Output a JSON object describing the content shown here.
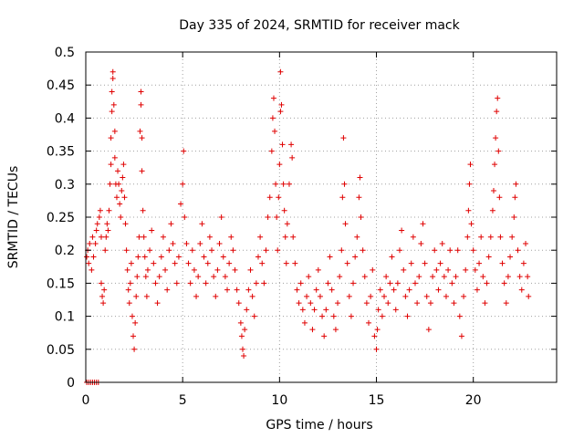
{
  "chart_data": {
    "type": "scatter",
    "title": "Day 335 of 2024, SRMTID for receiver mack",
    "xlabel": "GPS time / hours",
    "ylabel": "SRMTID / TECUs",
    "xlim": [
      0,
      24.3
    ],
    "ylim": [
      0,
      0.5
    ],
    "x_ticks": [
      0,
      5,
      10,
      15,
      20
    ],
    "x_tick_labels": [
      "0",
      "5",
      "10",
      "15",
      "20"
    ],
    "y_ticks": [
      0,
      0.05,
      0.1,
      0.15,
      0.2,
      0.25,
      0.3,
      0.35,
      0.4,
      0.45,
      0.5
    ],
    "y_tick_labels": [
      "0",
      "0.05",
      "0.1",
      "0.15",
      "0.2",
      "0.25",
      "0.3",
      "0.35",
      "0.4",
      "0.45",
      "0.5"
    ],
    "grid": true,
    "marker": "+",
    "colors": {
      "marker": "#e00000",
      "grid": "#a0a0a0",
      "frame": "#000000"
    },
    "series": [
      {
        "name": "SRMTID",
        "points": [
          [
            0.05,
            0.0
          ],
          [
            0.15,
            0.0
          ],
          [
            0.25,
            0.0
          ],
          [
            0.35,
            0.0
          ],
          [
            0.45,
            0.0
          ],
          [
            0.55,
            0.0
          ],
          [
            0.65,
            0.0
          ],
          [
            0.05,
            0.19
          ],
          [
            0.1,
            0.2
          ],
          [
            0.15,
            0.18
          ],
          [
            0.2,
            0.21
          ],
          [
            0.3,
            0.17
          ],
          [
            0.35,
            0.22
          ],
          [
            0.4,
            0.19
          ],
          [
            0.5,
            0.21
          ],
          [
            0.55,
            0.23
          ],
          [
            0.6,
            0.24
          ],
          [
            0.7,
            0.25
          ],
          [
            0.75,
            0.26
          ],
          [
            0.8,
            0.22
          ],
          [
            0.8,
            0.15
          ],
          [
            0.85,
            0.13
          ],
          [
            0.9,
            0.12
          ],
          [
            0.95,
            0.14
          ],
          [
            1.0,
            0.2
          ],
          [
            1.05,
            0.22
          ],
          [
            1.1,
            0.24
          ],
          [
            1.15,
            0.23
          ],
          [
            1.2,
            0.26
          ],
          [
            1.25,
            0.3
          ],
          [
            1.3,
            0.33
          ],
          [
            1.3,
            0.37
          ],
          [
            1.35,
            0.41
          ],
          [
            1.35,
            0.44
          ],
          [
            1.4,
            0.47
          ],
          [
            1.4,
            0.46
          ],
          [
            1.45,
            0.42
          ],
          [
            1.5,
            0.38
          ],
          [
            1.5,
            0.34
          ],
          [
            1.55,
            0.3
          ],
          [
            1.6,
            0.28
          ],
          [
            1.65,
            0.32
          ],
          [
            1.7,
            0.3
          ],
          [
            1.75,
            0.27
          ],
          [
            1.8,
            0.25
          ],
          [
            1.85,
            0.29
          ],
          [
            1.9,
            0.31
          ],
          [
            1.95,
            0.33
          ],
          [
            2.0,
            0.28
          ],
          [
            2.05,
            0.24
          ],
          [
            2.1,
            0.2
          ],
          [
            2.15,
            0.17
          ],
          [
            2.2,
            0.14
          ],
          [
            2.25,
            0.12
          ],
          [
            2.3,
            0.15
          ],
          [
            2.35,
            0.18
          ],
          [
            2.4,
            0.1
          ],
          [
            2.45,
            0.07
          ],
          [
            2.5,
            0.05
          ],
          [
            2.55,
            0.09
          ],
          [
            2.6,
            0.13
          ],
          [
            2.65,
            0.16
          ],
          [
            2.7,
            0.19
          ],
          [
            2.75,
            0.22
          ],
          [
            2.8,
            0.38
          ],
          [
            2.85,
            0.42
          ],
          [
            2.85,
            0.44
          ],
          [
            2.9,
            0.37
          ],
          [
            2.9,
            0.32
          ],
          [
            2.95,
            0.26
          ],
          [
            3.0,
            0.22
          ],
          [
            3.05,
            0.19
          ],
          [
            3.1,
            0.16
          ],
          [
            3.15,
            0.13
          ],
          [
            3.2,
            0.17
          ],
          [
            3.3,
            0.2
          ],
          [
            3.4,
            0.23
          ],
          [
            3.5,
            0.18
          ],
          [
            3.6,
            0.15
          ],
          [
            3.7,
            0.12
          ],
          [
            3.8,
            0.16
          ],
          [
            3.9,
            0.19
          ],
          [
            4.0,
            0.22
          ],
          [
            4.1,
            0.17
          ],
          [
            4.2,
            0.14
          ],
          [
            4.3,
            0.2
          ],
          [
            4.4,
            0.24
          ],
          [
            4.5,
            0.21
          ],
          [
            4.6,
            0.18
          ],
          [
            4.7,
            0.15
          ],
          [
            4.8,
            0.19
          ],
          [
            4.9,
            0.27
          ],
          [
            5.0,
            0.3
          ],
          [
            5.05,
            0.35
          ],
          [
            5.1,
            0.25
          ],
          [
            5.2,
            0.21
          ],
          [
            5.3,
            0.18
          ],
          [
            5.4,
            0.15
          ],
          [
            5.5,
            0.2
          ],
          [
            5.6,
            0.17
          ],
          [
            5.7,
            0.13
          ],
          [
            5.8,
            0.16
          ],
          [
            5.9,
            0.21
          ],
          [
            6.0,
            0.24
          ],
          [
            6.1,
            0.19
          ],
          [
            6.2,
            0.15
          ],
          [
            6.3,
            0.18
          ],
          [
            6.4,
            0.22
          ],
          [
            6.5,
            0.2
          ],
          [
            6.6,
            0.16
          ],
          [
            6.7,
            0.13
          ],
          [
            6.8,
            0.17
          ],
          [
            6.9,
            0.21
          ],
          [
            7.0,
            0.25
          ],
          [
            7.1,
            0.19
          ],
          [
            7.2,
            0.16
          ],
          [
            7.3,
            0.14
          ],
          [
            7.4,
            0.18
          ],
          [
            7.5,
            0.22
          ],
          [
            7.6,
            0.2
          ],
          [
            7.7,
            0.17
          ],
          [
            7.8,
            0.14
          ],
          [
            7.9,
            0.12
          ],
          [
            8.0,
            0.09
          ],
          [
            8.05,
            0.07
          ],
          [
            8.1,
            0.05
          ],
          [
            8.15,
            0.04
          ],
          [
            8.2,
            0.08
          ],
          [
            8.3,
            0.11
          ],
          [
            8.4,
            0.14
          ],
          [
            8.5,
            0.17
          ],
          [
            8.6,
            0.13
          ],
          [
            8.7,
            0.1
          ],
          [
            8.8,
            0.15
          ],
          [
            8.9,
            0.19
          ],
          [
            9.0,
            0.22
          ],
          [
            9.1,
            0.18
          ],
          [
            9.2,
            0.15
          ],
          [
            9.3,
            0.2
          ],
          [
            9.4,
            0.25
          ],
          [
            9.5,
            0.28
          ],
          [
            9.6,
            0.35
          ],
          [
            9.65,
            0.4
          ],
          [
            9.7,
            0.43
          ],
          [
            9.75,
            0.38
          ],
          [
            9.8,
            0.3
          ],
          [
            9.85,
            0.25
          ],
          [
            9.9,
            0.2
          ],
          [
            9.95,
            0.28
          ],
          [
            10.0,
            0.33
          ],
          [
            10.05,
            0.41
          ],
          [
            10.05,
            0.47
          ],
          [
            10.1,
            0.42
          ],
          [
            10.15,
            0.36
          ],
          [
            10.2,
            0.3
          ],
          [
            10.25,
            0.26
          ],
          [
            10.3,
            0.22
          ],
          [
            10.35,
            0.18
          ],
          [
            10.4,
            0.24
          ],
          [
            10.5,
            0.3
          ],
          [
            10.6,
            0.36
          ],
          [
            10.65,
            0.34
          ],
          [
            10.7,
            0.22
          ],
          [
            10.8,
            0.18
          ],
          [
            10.9,
            0.14
          ],
          [
            11.0,
            0.12
          ],
          [
            11.1,
            0.15
          ],
          [
            11.2,
            0.11
          ],
          [
            11.3,
            0.09
          ],
          [
            11.4,
            0.13
          ],
          [
            11.5,
            0.16
          ],
          [
            11.6,
            0.12
          ],
          [
            11.7,
            0.08
          ],
          [
            11.8,
            0.11
          ],
          [
            11.9,
            0.14
          ],
          [
            12.0,
            0.17
          ],
          [
            12.1,
            0.13
          ],
          [
            12.2,
            0.1
          ],
          [
            12.3,
            0.07
          ],
          [
            12.4,
            0.11
          ],
          [
            12.5,
            0.15
          ],
          [
            12.6,
            0.19
          ],
          [
            12.7,
            0.14
          ],
          [
            12.8,
            0.1
          ],
          [
            12.9,
            0.08
          ],
          [
            13.0,
            0.12
          ],
          [
            13.1,
            0.16
          ],
          [
            13.2,
            0.2
          ],
          [
            13.25,
            0.28
          ],
          [
            13.3,
            0.37
          ],
          [
            13.35,
            0.3
          ],
          [
            13.4,
            0.24
          ],
          [
            13.5,
            0.18
          ],
          [
            13.6,
            0.13
          ],
          [
            13.7,
            0.1
          ],
          [
            13.8,
            0.15
          ],
          [
            13.9,
            0.19
          ],
          [
            14.0,
            0.22
          ],
          [
            14.1,
            0.28
          ],
          [
            14.15,
            0.31
          ],
          [
            14.2,
            0.25
          ],
          [
            14.3,
            0.2
          ],
          [
            14.4,
            0.16
          ],
          [
            14.5,
            0.12
          ],
          [
            14.6,
            0.09
          ],
          [
            14.7,
            0.13
          ],
          [
            14.8,
            0.17
          ],
          [
            14.9,
            0.07
          ],
          [
            15.0,
            0.05
          ],
          [
            15.05,
            0.08
          ],
          [
            15.1,
            0.11
          ],
          [
            15.2,
            0.14
          ],
          [
            15.3,
            0.1
          ],
          [
            15.4,
            0.13
          ],
          [
            15.5,
            0.16
          ],
          [
            15.6,
            0.12
          ],
          [
            15.7,
            0.15
          ],
          [
            15.8,
            0.19
          ],
          [
            15.9,
            0.14
          ],
          [
            16.0,
            0.11
          ],
          [
            16.1,
            0.15
          ],
          [
            16.2,
            0.2
          ],
          [
            16.3,
            0.23
          ],
          [
            16.4,
            0.17
          ],
          [
            16.5,
            0.13
          ],
          [
            16.6,
            0.1
          ],
          [
            16.7,
            0.14
          ],
          [
            16.8,
            0.18
          ],
          [
            16.9,
            0.22
          ],
          [
            17.0,
            0.15
          ],
          [
            17.1,
            0.12
          ],
          [
            17.2,
            0.16
          ],
          [
            17.3,
            0.21
          ],
          [
            17.4,
            0.24
          ],
          [
            17.5,
            0.18
          ],
          [
            17.6,
            0.13
          ],
          [
            17.7,
            0.08
          ],
          [
            17.8,
            0.12
          ],
          [
            17.9,
            0.16
          ],
          [
            18.0,
            0.2
          ],
          [
            18.1,
            0.17
          ],
          [
            18.2,
            0.14
          ],
          [
            18.3,
            0.18
          ],
          [
            18.4,
            0.21
          ],
          [
            18.5,
            0.16
          ],
          [
            18.6,
            0.13
          ],
          [
            18.7,
            0.17
          ],
          [
            18.8,
            0.2
          ],
          [
            18.9,
            0.15
          ],
          [
            19.0,
            0.12
          ],
          [
            19.1,
            0.16
          ],
          [
            19.2,
            0.2
          ],
          [
            19.3,
            0.1
          ],
          [
            19.4,
            0.07
          ],
          [
            19.5,
            0.13
          ],
          [
            19.6,
            0.17
          ],
          [
            19.7,
            0.22
          ],
          [
            19.75,
            0.26
          ],
          [
            19.8,
            0.3
          ],
          [
            19.85,
            0.33
          ],
          [
            19.9,
            0.24
          ],
          [
            20.0,
            0.2
          ],
          [
            20.1,
            0.17
          ],
          [
            20.2,
            0.14
          ],
          [
            20.3,
            0.18
          ],
          [
            20.4,
            0.22
          ],
          [
            20.5,
            0.16
          ],
          [
            20.6,
            0.12
          ],
          [
            20.7,
            0.15
          ],
          [
            20.8,
            0.19
          ],
          [
            20.9,
            0.22
          ],
          [
            21.0,
            0.26
          ],
          [
            21.05,
            0.29
          ],
          [
            21.1,
            0.33
          ],
          [
            21.15,
            0.37
          ],
          [
            21.2,
            0.41
          ],
          [
            21.25,
            0.43
          ],
          [
            21.3,
            0.35
          ],
          [
            21.35,
            0.28
          ],
          [
            21.4,
            0.22
          ],
          [
            21.5,
            0.18
          ],
          [
            21.6,
            0.15
          ],
          [
            21.7,
            0.12
          ],
          [
            21.8,
            0.16
          ],
          [
            21.9,
            0.19
          ],
          [
            22.0,
            0.22
          ],
          [
            22.1,
            0.25
          ],
          [
            22.15,
            0.28
          ],
          [
            22.2,
            0.3
          ],
          [
            22.3,
            0.2
          ],
          [
            22.4,
            0.16
          ],
          [
            22.5,
            0.14
          ],
          [
            22.6,
            0.18
          ],
          [
            22.7,
            0.21
          ],
          [
            22.8,
            0.16
          ],
          [
            22.85,
            0.13
          ]
        ]
      }
    ]
  }
}
